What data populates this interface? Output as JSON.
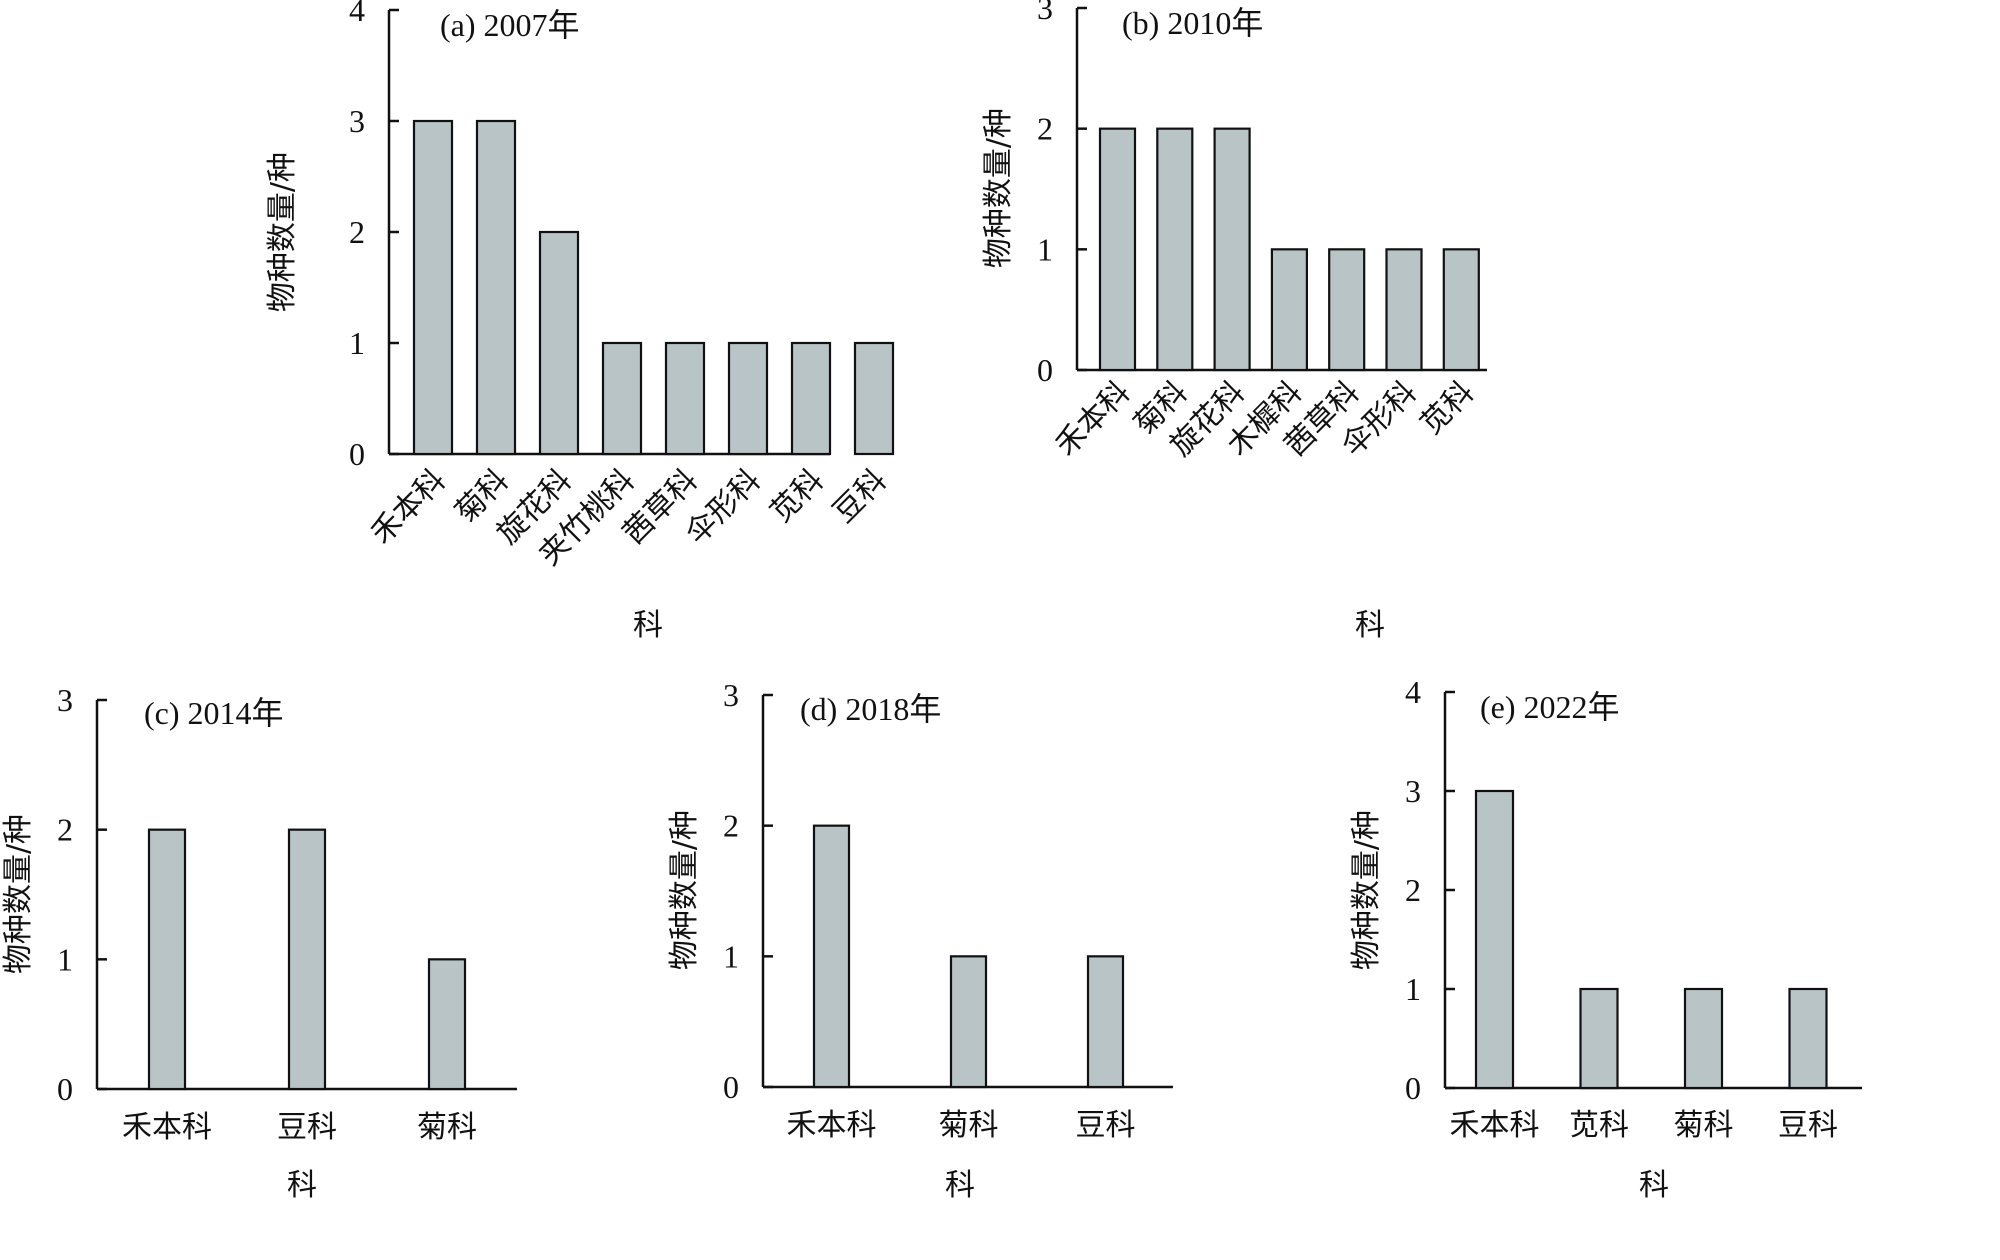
{
  "figure": {
    "bar_color": "#B8C4C6",
    "axis_color": "#111111"
  },
  "chart_data": [
    {
      "id": "a",
      "type": "bar",
      "title": "(a) 2007年",
      "xlabel": "科",
      "ylabel": "物种数量/种",
      "ylim": [
        0,
        4
      ],
      "yticks": [
        0,
        1,
        2,
        3,
        4
      ],
      "label_rotation": "diagonal",
      "categories": [
        "禾本科",
        "菊科",
        "旋花科",
        "夹竹桃科",
        "茜草科",
        "伞形科",
        "苋科",
        "豆科"
      ],
      "values": [
        3,
        3,
        2,
        1,
        1,
        1,
        1,
        1
      ]
    },
    {
      "id": "b",
      "type": "bar",
      "title": "(b) 2010年",
      "xlabel": "科",
      "ylabel": "物种数量/种",
      "ylim": [
        0,
        3
      ],
      "yticks": [
        0,
        1,
        2,
        3
      ],
      "label_rotation": "diagonal",
      "categories": [
        "禾本科",
        "菊科",
        "旋花科",
        "木樨科",
        "茜草科",
        "伞形科",
        "苋科"
      ],
      "values": [
        2,
        2,
        2,
        1,
        1,
        1,
        1
      ]
    },
    {
      "id": "c",
      "type": "bar",
      "title": "(c) 2014年",
      "xlabel": "科",
      "ylabel": "物种数量/种",
      "ylim": [
        0,
        3
      ],
      "yticks": [
        0,
        1,
        2,
        3
      ],
      "label_rotation": "horizontal",
      "categories": [
        "禾本科",
        "豆科",
        "菊科"
      ],
      "values": [
        2,
        2,
        1
      ]
    },
    {
      "id": "d",
      "type": "bar",
      "title": "(d) 2018年",
      "xlabel": "科",
      "ylabel": "物种数量/种",
      "ylim": [
        0,
        3
      ],
      "yticks": [
        0,
        1,
        2,
        3
      ],
      "label_rotation": "horizontal",
      "categories": [
        "禾本科",
        "菊科",
        "豆科"
      ],
      "values": [
        2,
        1,
        1
      ]
    },
    {
      "id": "e",
      "type": "bar",
      "title": "(e) 2022年",
      "xlabel": "科",
      "ylabel": "物种数量/种",
      "ylim": [
        0,
        4
      ],
      "yticks": [
        0,
        1,
        2,
        3,
        4
      ],
      "label_rotation": "horizontal",
      "categories": [
        "禾本科",
        "苋科",
        "菊科",
        "豆科"
      ],
      "values": [
        3,
        1,
        1,
        1
      ]
    }
  ]
}
